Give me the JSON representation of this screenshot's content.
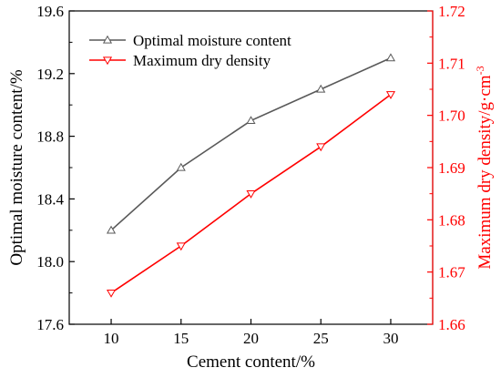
{
  "chart_data": {
    "type": "line",
    "x": [
      10,
      15,
      20,
      25,
      30
    ],
    "xlabel": "Cement content/%",
    "ylabel_left": "Optimal moisture content/%",
    "ylabel_right_main": "Maximum dry density/g",
    "ylabel_right_unit": "cm",
    "ylabel_right_sup": "-3",
    "ylabel_right_separator": "·",
    "xlim": [
      7,
      33
    ],
    "ylim_left": [
      17.6,
      19.6
    ],
    "ylim_right": [
      1.66,
      1.72
    ],
    "xticks": [
      10,
      15,
      20,
      25,
      30
    ],
    "yticks_left": [
      17.6,
      18.0,
      18.4,
      18.8,
      19.2,
      19.6
    ],
    "yticks_left_labels": [
      "17.6",
      "18.0",
      "18.4",
      "18.8",
      "19.2",
      "19.6"
    ],
    "yticks_right": [
      1.66,
      1.67,
      1.68,
      1.69,
      1.7,
      1.71,
      1.72
    ],
    "yticks_right_labels": [
      "1.66",
      "1.67",
      "1.68",
      "1.69",
      "1.70",
      "1.71",
      "1.72"
    ],
    "grid": false,
    "legend_position": "top-left",
    "series": [
      {
        "name": "Optimal moisture content",
        "axis": "left",
        "color": "#595959",
        "marker": "triangle-up",
        "values": [
          18.2,
          18.6,
          18.9,
          19.1,
          19.3
        ]
      },
      {
        "name": "Maximum dry density",
        "axis": "right",
        "color": "#ff0000",
        "marker": "triangle-down",
        "values": [
          1.666,
          1.675,
          1.685,
          1.694,
          1.704
        ]
      }
    ]
  }
}
